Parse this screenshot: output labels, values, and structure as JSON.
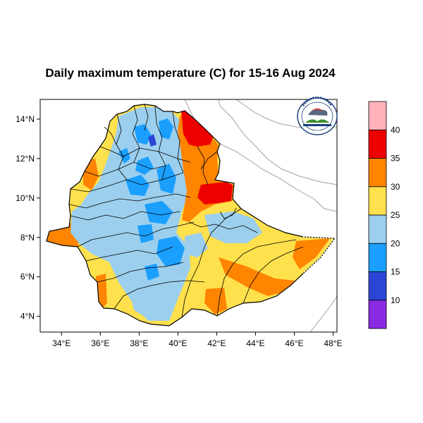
{
  "title": "Daily maximum temperature (C) for 15-16 Aug 2024",
  "map": {
    "x_ticks": [
      {
        "lon": 34,
        "label": "34°E"
      },
      {
        "lon": 36,
        "label": "36°E"
      },
      {
        "lon": 38,
        "label": "38°E"
      },
      {
        "lon": 40,
        "label": "40°E"
      },
      {
        "lon": 42,
        "label": "42°E"
      },
      {
        "lon": 44,
        "label": "44°E"
      },
      {
        "lon": 46,
        "label": "46°E"
      },
      {
        "lon": 48,
        "label": "48°E"
      }
    ],
    "y_ticks": [
      {
        "lat": 14,
        "label": "14°N"
      },
      {
        "lat": 12,
        "label": "12°N"
      },
      {
        "lat": 10,
        "label": "10°N"
      },
      {
        "lat": 8,
        "label": "8°N"
      },
      {
        "lat": 6,
        "label": "6°N"
      },
      {
        "lat": 4,
        "label": "4°N"
      }
    ],
    "lon_range": [
      32.9,
      48.2
    ],
    "lat_range": [
      3.2,
      15.0
    ]
  },
  "colorbar": {
    "bands": [
      {
        "color": "#8a2be2"
      },
      {
        "color": "#2b45d6"
      },
      {
        "color": "#1a9fff"
      },
      {
        "color": "#9ccfee"
      },
      {
        "color": "#ffe04d"
      },
      {
        "color": "#ff8400"
      },
      {
        "color": "#ee0000"
      },
      {
        "color": "#ffb3bb"
      }
    ],
    "labels": [
      "10",
      "15",
      "20",
      "25",
      "30",
      "35",
      "40"
    ]
  },
  "logo_icon": "ethiopian-meteorology-institute-seal"
}
